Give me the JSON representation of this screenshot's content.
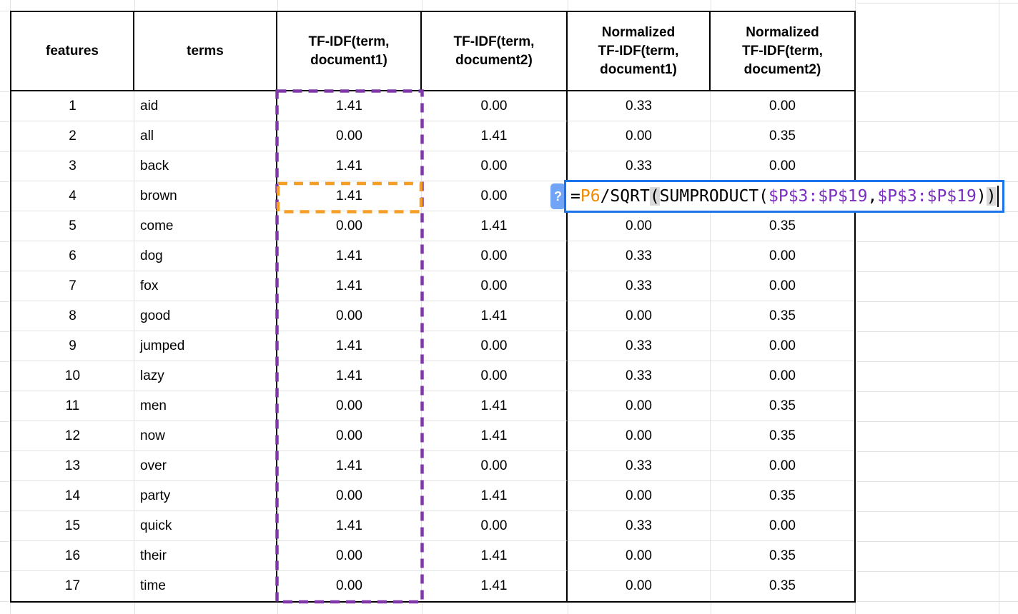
{
  "table": {
    "header_lines": [
      [
        "features"
      ],
      [
        "terms"
      ],
      [
        "TF-IDF(term,",
        "document1)"
      ],
      [
        "TF-IDF(term,",
        "document2)"
      ],
      [
        "Normalized",
        "TF-IDF(term,",
        "document1)"
      ],
      [
        "Normalized",
        "TF-IDF(term,",
        "document2)"
      ]
    ],
    "rows": [
      {
        "feature": "1",
        "term": "aid",
        "tfidf1": "1.41",
        "tfidf2": "0.00",
        "norm1": "0.33",
        "norm2": "0.00"
      },
      {
        "feature": "2",
        "term": "all",
        "tfidf1": "0.00",
        "tfidf2": "1.41",
        "norm1": "0.00",
        "norm2": "0.35"
      },
      {
        "feature": "3",
        "term": "back",
        "tfidf1": "1.41",
        "tfidf2": "0.00",
        "norm1": "0.33",
        "norm2": "0.00"
      },
      {
        "feature": "4",
        "term": "brown",
        "tfidf1": "1.41",
        "tfidf2": "0.00",
        "norm1": "",
        "norm2": ""
      },
      {
        "feature": "5",
        "term": "come",
        "tfidf1": "0.00",
        "tfidf2": "1.41",
        "norm1": "0.00",
        "norm2": "0.35"
      },
      {
        "feature": "6",
        "term": "dog",
        "tfidf1": "1.41",
        "tfidf2": "0.00",
        "norm1": "0.33",
        "norm2": "0.00"
      },
      {
        "feature": "7",
        "term": "fox",
        "tfidf1": "1.41",
        "tfidf2": "0.00",
        "norm1": "0.33",
        "norm2": "0.00"
      },
      {
        "feature": "8",
        "term": "good",
        "tfidf1": "0.00",
        "tfidf2": "1.41",
        "norm1": "0.00",
        "norm2": "0.35"
      },
      {
        "feature": "9",
        "term": "jumped",
        "tfidf1": "1.41",
        "tfidf2": "0.00",
        "norm1": "0.33",
        "norm2": "0.00"
      },
      {
        "feature": "10",
        "term": "lazy",
        "tfidf1": "1.41",
        "tfidf2": "0.00",
        "norm1": "0.33",
        "norm2": "0.00"
      },
      {
        "feature": "11",
        "term": "men",
        "tfidf1": "0.00",
        "tfidf2": "1.41",
        "norm1": "0.00",
        "norm2": "0.35"
      },
      {
        "feature": "12",
        "term": "now",
        "tfidf1": "0.00",
        "tfidf2": "1.41",
        "norm1": "0.00",
        "norm2": "0.35"
      },
      {
        "feature": "13",
        "term": "over",
        "tfidf1": "1.41",
        "tfidf2": "0.00",
        "norm1": "0.33",
        "norm2": "0.00"
      },
      {
        "feature": "14",
        "term": "party",
        "tfidf1": "0.00",
        "tfidf2": "1.41",
        "norm1": "0.00",
        "norm2": "0.35"
      },
      {
        "feature": "15",
        "term": "quick",
        "tfidf1": "1.41",
        "tfidf2": "0.00",
        "norm1": "0.33",
        "norm2": "0.00"
      },
      {
        "feature": "16",
        "term": "their",
        "tfidf1": "0.00",
        "tfidf2": "1.41",
        "norm1": "0.00",
        "norm2": "0.35"
      },
      {
        "feature": "17",
        "term": "time",
        "tfidf1": "0.00",
        "tfidf2": "1.41",
        "norm1": "0.00",
        "norm2": "0.35"
      }
    ]
  },
  "formula_editor": {
    "help_label": "?",
    "full_formula": "=P6/SQRT(SUMPRODUCT($P$3:$P$19,$P$3:$P$19))",
    "tokens": [
      {
        "t": "=",
        "c": "black"
      },
      {
        "t": "P6",
        "c": "orange"
      },
      {
        "t": "/SQRT",
        "c": "black"
      },
      {
        "t": "(",
        "c": "black",
        "hl": true
      },
      {
        "t": "SUMPRODUCT",
        "c": "black"
      },
      {
        "t": "(",
        "c": "black"
      },
      {
        "t": "$P$3:$P$19",
        "c": "purple"
      },
      {
        "t": ",",
        "c": "black"
      },
      {
        "t": "$P$3:$P$19",
        "c": "purple"
      },
      {
        "t": ")",
        "c": "black"
      },
      {
        "t": ")",
        "c": "black",
        "hl": true
      }
    ]
  },
  "highlights": {
    "orange_cell_ref": "P6",
    "purple_range_ref": "$P$3:$P$19"
  },
  "colors": {
    "formula_border_blue": "#1A73E8",
    "help_badge_blue": "#71A4F7",
    "token_orange": "#F08A00",
    "token_purple": "#7B2FC0",
    "dash_orange": "#F59D25",
    "dash_purple": "#8038A8",
    "paren_highlight": "#D9D9D9",
    "gridline_gray": "#E2E2E2",
    "table_border_black": "#000000"
  }
}
